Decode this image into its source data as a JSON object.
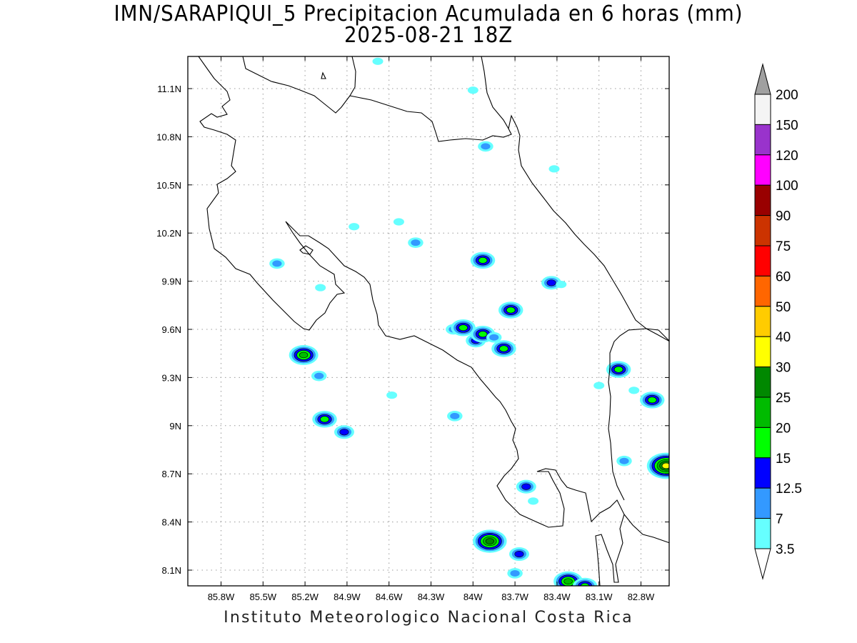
{
  "title": {
    "line1": "IMN/SARAPIQUI_5 Precipitacion Acumulada en 6 horas (mm)",
    "line2": "2025-08-21 18Z"
  },
  "footer": "Instituto Meteorologico Nacional Costa Rica",
  "map": {
    "x_ticks": [
      "85.8W",
      "85.5W",
      "85.2W",
      "84.9W",
      "84.6W",
      "84.3W",
      "84W",
      "83.7W",
      "83.4W",
      "83.1W",
      "82.8W"
    ],
    "y_ticks": [
      "11.1N",
      "10.8N",
      "10.5N",
      "10.2N",
      "9.9N",
      "9.6N",
      "9.3N",
      "9N",
      "8.7N",
      "8.4N",
      "8.1N"
    ],
    "grid": "dotted"
  },
  "colorbar": {
    "labels": [
      "200",
      "150",
      "120",
      "100",
      "90",
      "75",
      "60",
      "50",
      "40",
      "30",
      "25",
      "20",
      "15",
      "12.5",
      "7",
      "3.5"
    ],
    "bins": [
      {
        "color": "#f4f4f4"
      },
      {
        "color": "#9933cc"
      },
      {
        "color": "#ff00ff"
      },
      {
        "color": "#990000"
      },
      {
        "color": "#cc3300"
      },
      {
        "color": "#ff0000"
      },
      {
        "color": "#ff6600"
      },
      {
        "color": "#ffcc00"
      },
      {
        "color": "#ffff00"
      },
      {
        "color": "#008800"
      },
      {
        "color": "#00bb00"
      },
      {
        "color": "#00ff00"
      },
      {
        "color": "#0000ff"
      },
      {
        "color": "#3399ff"
      },
      {
        "color": "#66ffff"
      }
    ],
    "top_arrow_color": "#a0a0a0",
    "bottom_arrow_color": "#ffffff"
  },
  "rain_cells": [
    {
      "lon": -85.21,
      "lat": 9.44,
      "peak": 4
    },
    {
      "lon": -85.06,
      "lat": 9.04,
      "peak": 3
    },
    {
      "lon": -84.92,
      "lat": 8.96,
      "peak": 2
    },
    {
      "lon": -85.1,
      "lat": 9.31,
      "peak": 1
    },
    {
      "lon": -85.4,
      "lat": 10.01,
      "peak": 1
    },
    {
      "lon": -85.09,
      "lat": 9.86,
      "peak": 0
    },
    {
      "lon": -84.85,
      "lat": 10.24,
      "peak": 0
    },
    {
      "lon": -84.53,
      "lat": 10.27,
      "peak": 0
    },
    {
      "lon": -84.41,
      "lat": 10.14,
      "peak": 1
    },
    {
      "lon": -84.58,
      "lat": 9.19,
      "peak": 0
    },
    {
      "lon": -84.13,
      "lat": 9.06,
      "peak": 1
    },
    {
      "lon": -84.14,
      "lat": 9.6,
      "peak": 1
    },
    {
      "lon": -84.07,
      "lat": 9.61,
      "peak": 3
    },
    {
      "lon": -83.98,
      "lat": 9.53,
      "peak": 2
    },
    {
      "lon": -83.93,
      "lat": 9.57,
      "peak": 3
    },
    {
      "lon": -83.85,
      "lat": 9.55,
      "peak": 1
    },
    {
      "lon": -83.78,
      "lat": 9.48,
      "peak": 3
    },
    {
      "lon": -83.73,
      "lat": 9.72,
      "peak": 3
    },
    {
      "lon": -83.93,
      "lat": 10.03,
      "peak": 3
    },
    {
      "lon": -83.44,
      "lat": 9.89,
      "peak": 2
    },
    {
      "lon": -83.37,
      "lat": 9.88,
      "peak": 0
    },
    {
      "lon": -83.91,
      "lat": 10.74,
      "peak": 1
    },
    {
      "lon": -83.42,
      "lat": 10.6,
      "peak": 0
    },
    {
      "lon": -84.0,
      "lat": 11.09,
      "peak": 0
    },
    {
      "lon": -84.68,
      "lat": 11.27,
      "peak": 0
    },
    {
      "lon": -82.96,
      "lat": 9.35,
      "peak": 3
    },
    {
      "lon": -83.1,
      "lat": 9.25,
      "peak": 0
    },
    {
      "lon": -82.85,
      "lat": 9.22,
      "peak": 0
    },
    {
      "lon": -82.72,
      "lat": 9.16,
      "peak": 3
    },
    {
      "lon": -82.62,
      "lat": 8.75,
      "peak": 6
    },
    {
      "lon": -82.92,
      "lat": 8.78,
      "peak": 1
    },
    {
      "lon": -83.62,
      "lat": 8.62,
      "peak": 2
    },
    {
      "lon": -83.57,
      "lat": 8.53,
      "peak": 0
    },
    {
      "lon": -83.88,
      "lat": 8.28,
      "peak": 5
    },
    {
      "lon": -83.67,
      "lat": 8.2,
      "peak": 2
    },
    {
      "lon": -83.7,
      "lat": 8.08,
      "peak": 1
    },
    {
      "lon": -83.32,
      "lat": 8.03,
      "peak": 4
    },
    {
      "lon": -83.2,
      "lat": 8.0,
      "peak": 3
    }
  ]
}
